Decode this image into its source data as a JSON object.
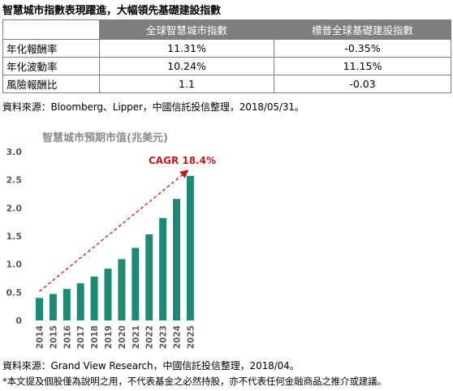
{
  "header": {
    "title": "智慧城市指數表現躍進，大幅領先基礎建設指數"
  },
  "performance_table": {
    "columns": [
      "",
      "全球智慧城市指數",
      "標普全球基礎建設指數"
    ],
    "rows": [
      {
        "label": "年化報酬率",
        "values": [
          "11.31%",
          "-0.35%"
        ]
      },
      {
        "label": "年化波動率",
        "values": [
          "10.24%",
          "11.15%"
        ]
      },
      {
        "label": "風險報酬比",
        "values": [
          "1.1",
          "-0.03"
        ]
      }
    ]
  },
  "sources": {
    "table_source": "資料來源：Bloomberg、Lipper，中國信託投信整理，2018/05/31。",
    "chart_source": "資料來源：Grand View Research，中國信託投信整理，2018/04。",
    "disclaimer": "*本文提及個股僅為說明之用，不代表基金之必然持股，亦不代表任何金融商品之推介或建議。"
  },
  "colors": {
    "bar": "#1f8a74",
    "cagr_arrow": "#c0191e",
    "table_header_bg": "#7f7f7f",
    "title_text": "#8c8c8c"
  },
  "chart_data": {
    "type": "bar",
    "title": "智慧城市預期市值(兆美元)",
    "categories": [
      "2014",
      "2015",
      "2016",
      "2017",
      "2018",
      "2019",
      "2020",
      "2021",
      "2022",
      "2023",
      "2024",
      "2025"
    ],
    "values": [
      0.4,
      0.47,
      0.56,
      0.66,
      0.78,
      0.92,
      1.09,
      1.29,
      1.53,
      1.82,
      2.16,
      2.57
    ],
    "ylim": [
      0,
      3.0
    ],
    "yticks": [
      "0",
      "0.5",
      "1.0",
      "1.5",
      "2.0",
      "2.5",
      "3.0"
    ],
    "grid": false,
    "annotation": "CAGR 18.4%"
  }
}
